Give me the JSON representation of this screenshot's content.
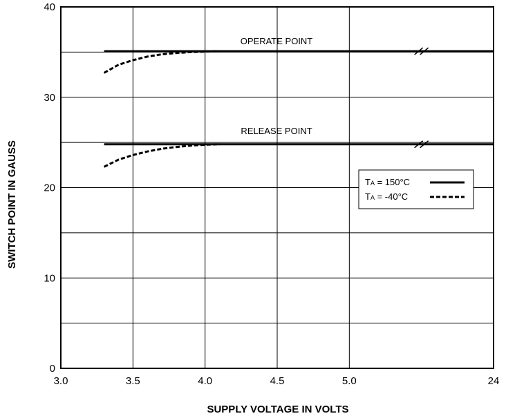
{
  "chart_data": {
    "type": "line",
    "title": "",
    "xlabel": "SUPPLY VOLTAGE IN VOLTS",
    "ylabel": "SWITCH POINT IN GAUSS",
    "x_ticks": [
      "3.0",
      "3.5",
      "4.0",
      "4.5",
      "5.0",
      "24"
    ],
    "x_tick_positions": [
      3.0,
      3.5,
      4.0,
      4.5,
      5.0,
      6.0
    ],
    "y_ticks": [
      "0",
      "10",
      "20",
      "30",
      "40"
    ],
    "xlim": [
      3.0,
      6.0
    ],
    "ylim": [
      0,
      40
    ],
    "grid": true,
    "x_axis_break": "between 5.0 and 24",
    "legend": {
      "placement": "right",
      "entries": [
        {
          "label_main": "T",
          "label_sub": "A",
          "label_rest": " = 150°C",
          "style": "solid"
        },
        {
          "label_main": "T",
          "label_sub": "A",
          "label_rest": " = -40°C",
          "style": "dashed"
        }
      ]
    },
    "annotations": [
      "OPERATE POINT",
      "RELEASE POINT"
    ],
    "series": [
      {
        "style": "solid",
        "group": "operate",
        "x": [
          3.3,
          6.0
        ],
        "y": [
          35.1,
          35.1
        ]
      },
      {
        "style": "dashed",
        "group": "operate",
        "x": [
          3.3,
          3.4,
          3.5,
          3.6,
          3.7,
          3.8,
          3.9,
          4.0,
          4.1
        ],
        "y": [
          32.7,
          33.6,
          34.1,
          34.5,
          34.75,
          34.9,
          35.0,
          35.05,
          35.1
        ]
      },
      {
        "style": "solid",
        "group": "release",
        "x": [
          3.3,
          6.0
        ],
        "y": [
          24.8,
          24.8
        ]
      },
      {
        "style": "dashed",
        "group": "release",
        "x": [
          3.3,
          3.4,
          3.5,
          3.6,
          3.7,
          3.8,
          3.9,
          4.0,
          4.1
        ],
        "y": [
          22.3,
          23.1,
          23.6,
          24.0,
          24.3,
          24.5,
          24.65,
          24.75,
          24.8
        ]
      }
    ]
  }
}
